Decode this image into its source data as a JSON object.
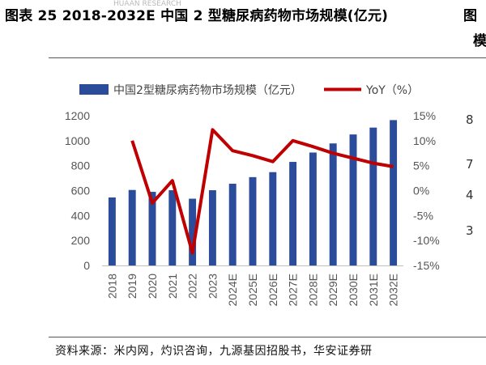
{
  "title": "图表 25 2018-2032E 中国 2 型糖尿病药物市场规模(亿元)",
  "title_cut_right": "图",
  "title_cut_right2": "模",
  "watermark": "HUAAN RESEARCH",
  "source": "资料来源：米内网，灼识咨询，九源基因招股书，华安证券研",
  "right_cut_labels": [
    "8",
    "7",
    "4",
    "3"
  ],
  "chart_data": {
    "type": "bar",
    "categories": [
      "2018",
      "2019",
      "2020",
      "2021",
      "2022",
      "2023",
      "2024E",
      "2025E",
      "2026E",
      "2027E",
      "2028E",
      "2029E",
      "2030E",
      "2031E",
      "2032E"
    ],
    "series": [
      {
        "name": "中国2型糖尿病药物市场规模（亿元）",
        "type": "bar",
        "axis": "left",
        "color": "#2b4c9b",
        "values": [
          545,
          605,
          590,
          603,
          535,
          603,
          655,
          708,
          748,
          830,
          905,
          978,
          1050,
          1105,
          1165
        ]
      },
      {
        "name": "YoY（%）",
        "type": "line",
        "axis": "right",
        "color": "#c00000",
        "values": [
          null,
          10.0,
          -2.5,
          2.0,
          -12.5,
          12.2,
          8.0,
          7.0,
          5.8,
          10.0,
          8.8,
          7.5,
          6.5,
          5.5,
          4.8
        ]
      }
    ],
    "y_left": {
      "min": 0,
      "max": 1200,
      "ticks": [
        0,
        200,
        400,
        600,
        800,
        1000,
        1200
      ]
    },
    "y_right": {
      "min": -15,
      "max": 15,
      "ticks": [
        "-15%",
        "-10%",
        "-5%",
        "0%",
        "5%",
        "10%",
        "15%"
      ]
    },
    "legend_position": "top"
  }
}
